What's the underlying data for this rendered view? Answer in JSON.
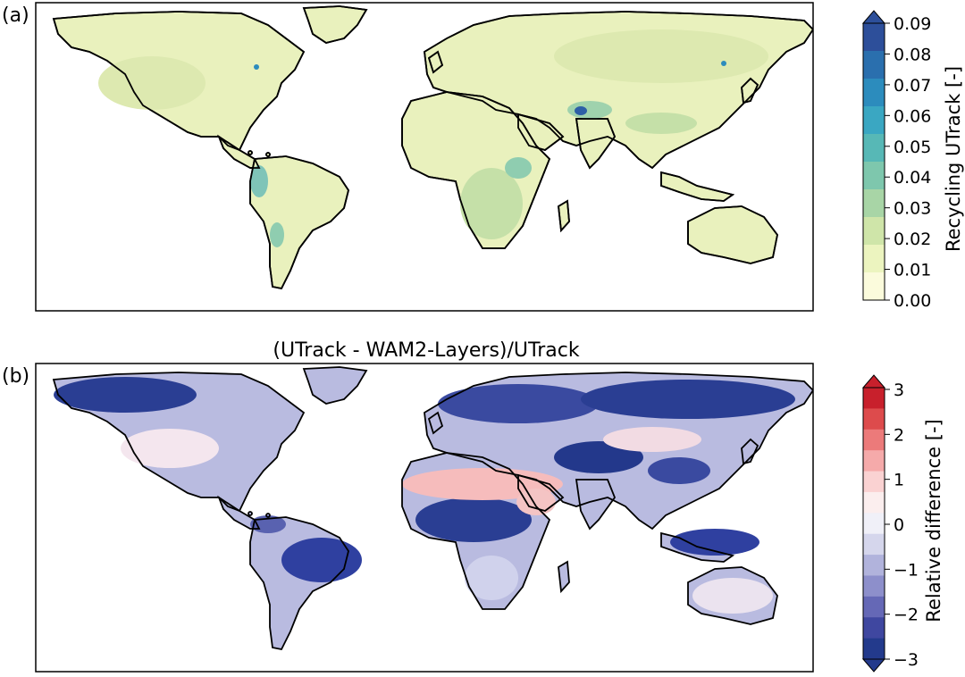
{
  "panels": [
    {
      "label": "(a)",
      "title": "",
      "colorbar": {
        "label": "Recycling UTrack [-]",
        "ticks": [
          "0.09",
          "0.08",
          "0.07",
          "0.06",
          "0.05",
          "0.04",
          "0.03",
          "0.02",
          "0.01",
          "0.00"
        ],
        "colors": [
          "#2d4f9a",
          "#2a6fae",
          "#2c8cbd",
          "#3aa7c2",
          "#57b8b6",
          "#7ec7ad",
          "#a8d5a6",
          "#cfe5a9",
          "#ecf4bf",
          "#fbfbdc"
        ]
      }
    },
    {
      "label": "(b)",
      "title": "(UTrack - WAM2-Layers)/UTrack",
      "colorbar": {
        "label": "Relative difference [-]",
        "ticks": [
          "3",
          "2",
          "1",
          "0",
          "−1",
          "−2",
          "−3"
        ],
        "colors": [
          "#c8202c",
          "#dd4b4c",
          "#ec7a7a",
          "#f5aaaa",
          "#fad2d2",
          "#fbeeee",
          "#f0f0f8",
          "#d5d6ec",
          "#b1b3dc",
          "#8d8fcb",
          "#6568b6",
          "#3f47a0",
          "#233a8c"
        ]
      }
    }
  ]
}
